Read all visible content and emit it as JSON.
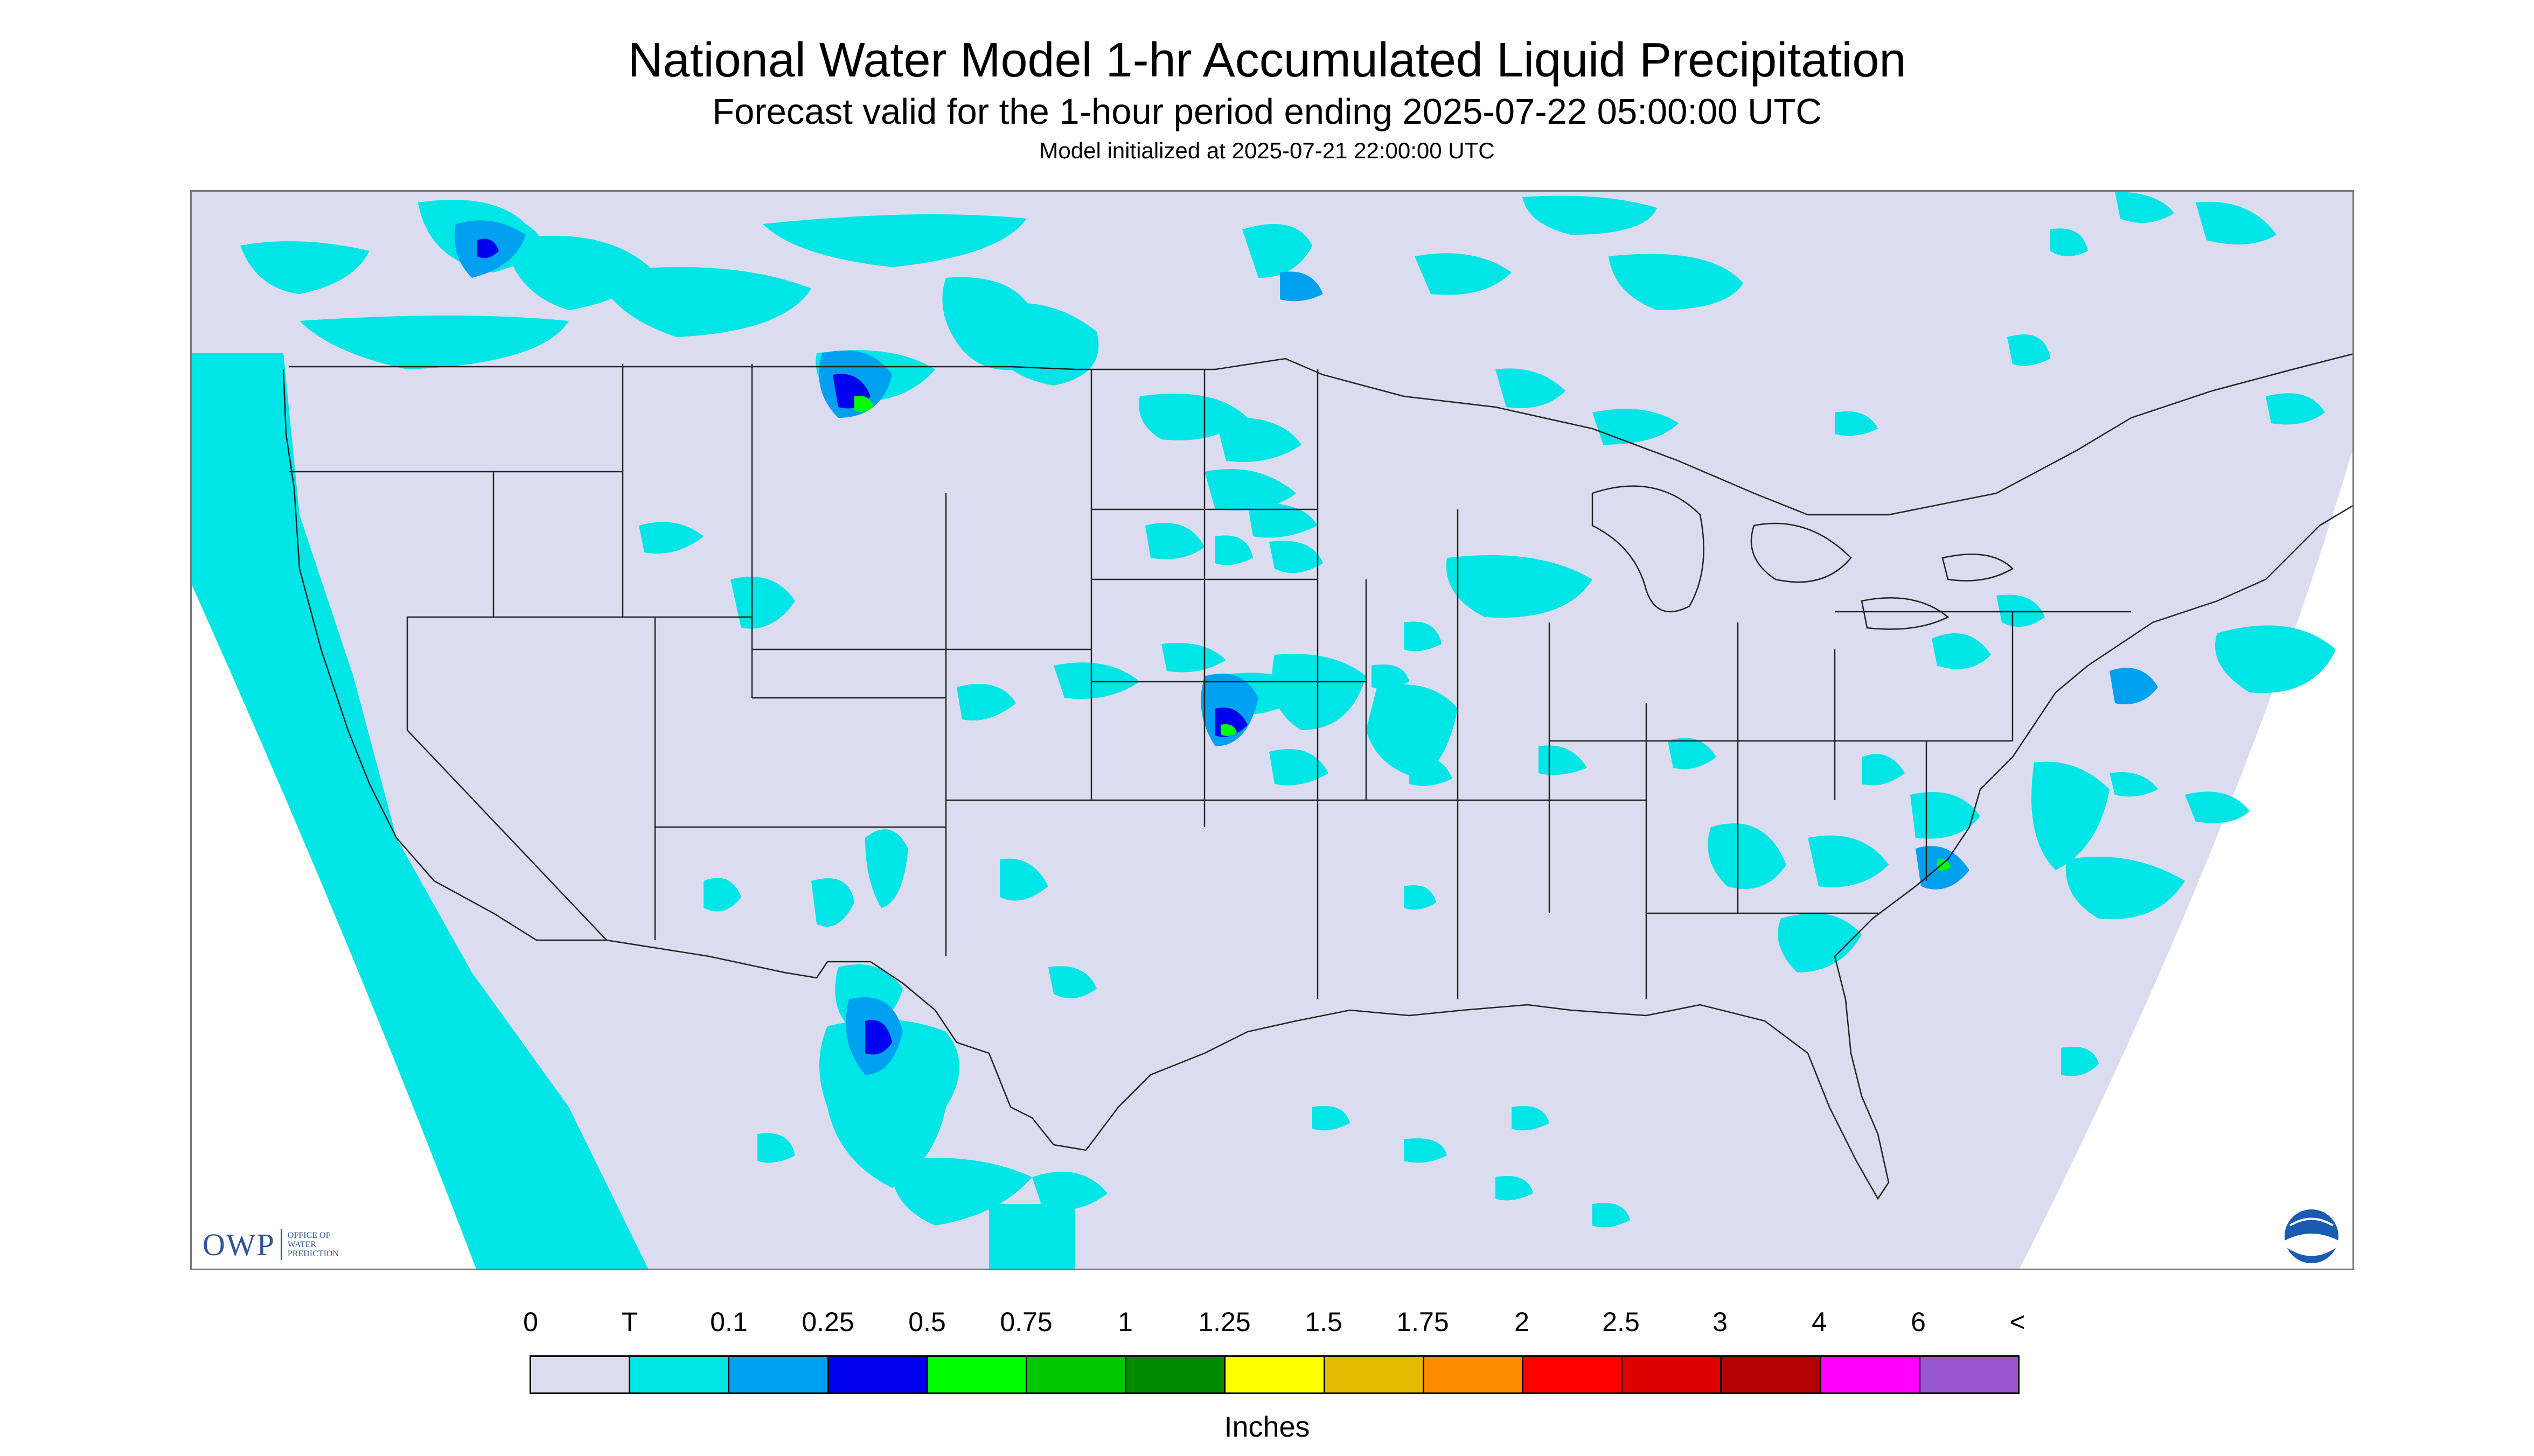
{
  "header": {
    "title": "National Water Model 1-hr Accumulated Liquid Precipitation",
    "subtitle": "Forecast valid for the 1-hour period ending 2025-07-22 05:00:00 UTC",
    "init_line": "Model initialized at 2025-07-21 22:00:00 UTC"
  },
  "logo_owp": {
    "mark": "OWP",
    "text": "OFFICE OF WATER PREDICTION"
  },
  "logo_noaa": {
    "text": "NOAA"
  },
  "legend": {
    "labels": [
      "0",
      "T",
      "0.1",
      "0.25",
      "0.5",
      "0.75",
      "1",
      "1.25",
      "1.5",
      "1.75",
      "2",
      "2.5",
      "3",
      "4",
      "6",
      "<"
    ],
    "colors": [
      "#dcdcf0",
      "#00e5e5",
      "#00a0f0",
      "#0000ee",
      "#00ff00",
      "#00c800",
      "#008c00",
      "#ffff00",
      "#e6b800",
      "#ff8c00",
      "#ff0000",
      "#dc0000",
      "#b40000",
      "#ff00ff",
      "#9955cc"
    ],
    "units": "Inches"
  },
  "map_colors": {
    "background": "#dcdcf0",
    "outside_domain": "#ffffff",
    "trace": "#00e5e5",
    "light": "#00a0f0",
    "moderate": "#0000ee",
    "heavy": "#00ff00",
    "boundaries": "#222222"
  }
}
